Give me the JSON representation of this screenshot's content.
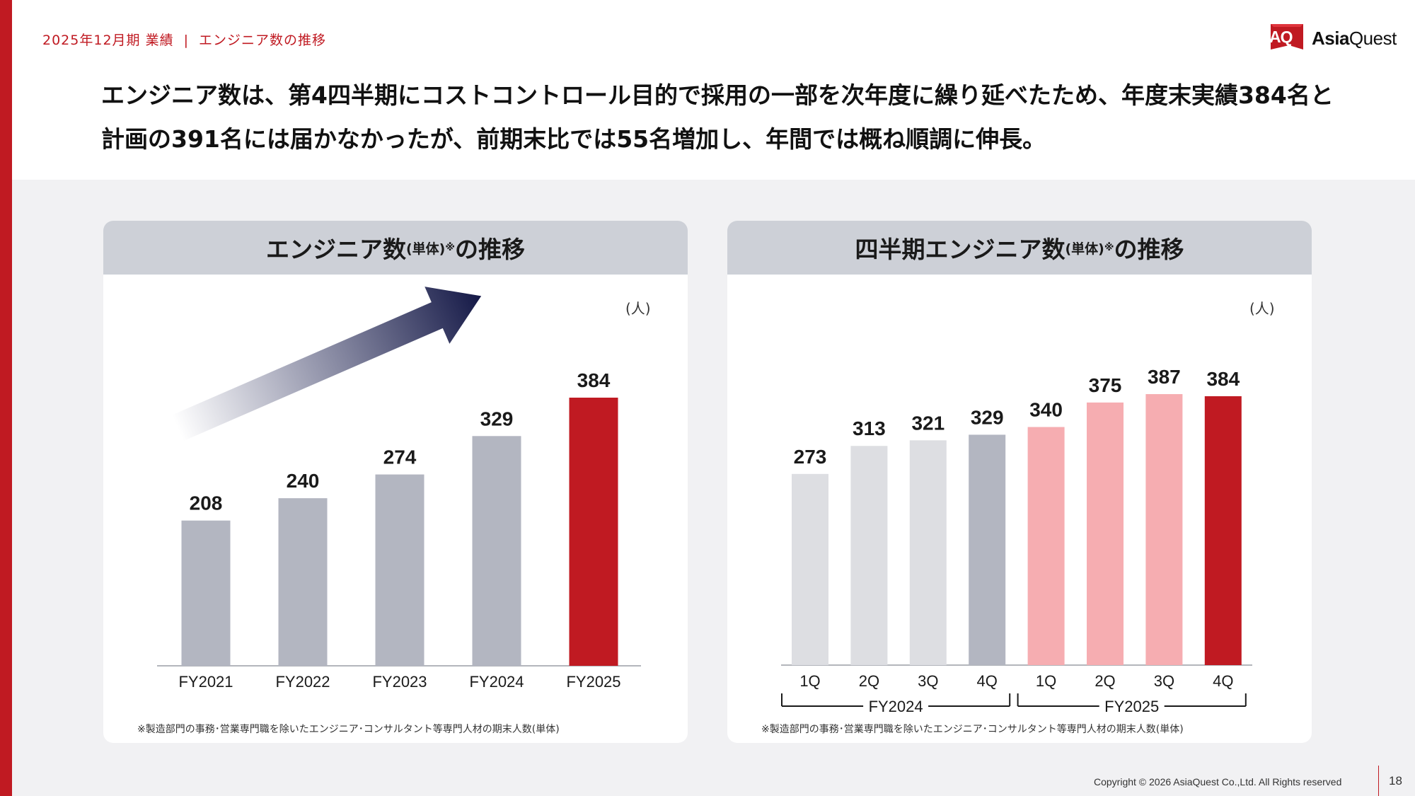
{
  "header": {
    "breadcrumb_period": "2025年12月期 業績",
    "breadcrumb_separator": "|",
    "breadcrumb_topic": "エンジニア数の推移",
    "logo_mark": "AQ",
    "logo_name_bold": "Asia",
    "logo_name_regular": "Quest"
  },
  "headline": {
    "line1": "エンジニア数は、第4四半期にコストコントロール目的で採用の一部を次年度に繰り延べたため、年度末実績384名と",
    "line2": "計画の391名には届かなかったが、前期末比では55名増加し、年間では概ね順調に伸長。"
  },
  "left_panel": {
    "title_main": "エンジニア数",
    "title_small": "(単体)",
    "title_mark": "※",
    "title_tail": "の推移",
    "unit": "(人)",
    "footnote": "※製造部門の事務･営業専門職を除いたエンジニア･コンサルタント等専門人材の期末人数(単体)"
  },
  "right_panel": {
    "title_main": "四半期エンジニア数",
    "title_small": "(単体)",
    "title_mark": "※",
    "title_tail": "の推移",
    "unit": "(人)",
    "footnote": "※製造部門の事務･営業専門職を除いたエンジニア･コンサルタント等専門人材の期末人数(単体)"
  },
  "chart_data": [
    {
      "type": "bar",
      "title": "エンジニア数(単体)※の推移",
      "categories": [
        "FY2021",
        "FY2022",
        "FY2023",
        "FY2024",
        "FY2025"
      ],
      "values": [
        208,
        240,
        274,
        329,
        384
      ],
      "ylabel": "(人)",
      "ylim": [
        0,
        384
      ],
      "colors": [
        "#b3b6c1",
        "#b3b6c1",
        "#b3b6c1",
        "#b3b6c1",
        "#c01a22"
      ],
      "grid": false,
      "annotation": "increasing-trend-arrow"
    },
    {
      "type": "bar",
      "title": "四半期エンジニア数(単体)※の推移",
      "categories": [
        "1Q",
        "2Q",
        "3Q",
        "4Q",
        "1Q",
        "2Q",
        "3Q",
        "4Q"
      ],
      "groups": [
        {
          "name": "FY2024",
          "categories": [
            "1Q",
            "2Q",
            "3Q",
            "4Q"
          ]
        },
        {
          "name": "FY2025",
          "categories": [
            "1Q",
            "2Q",
            "3Q",
            "4Q"
          ]
        }
      ],
      "values": [
        273,
        313,
        321,
        329,
        340,
        375,
        387,
        384
      ],
      "ylabel": "(人)",
      "ylim": [
        0,
        387
      ],
      "colors": [
        "#dddee2",
        "#dddee2",
        "#dddee2",
        "#b3b6c1",
        "#f6adb1",
        "#f6adb1",
        "#f6adb1",
        "#c01a22"
      ],
      "grid": false
    }
  ],
  "footer": {
    "copyright": "Copyright © 2026 AsiaQuest Co.,Ltd.  All Rights reserved",
    "page_number": "18"
  }
}
